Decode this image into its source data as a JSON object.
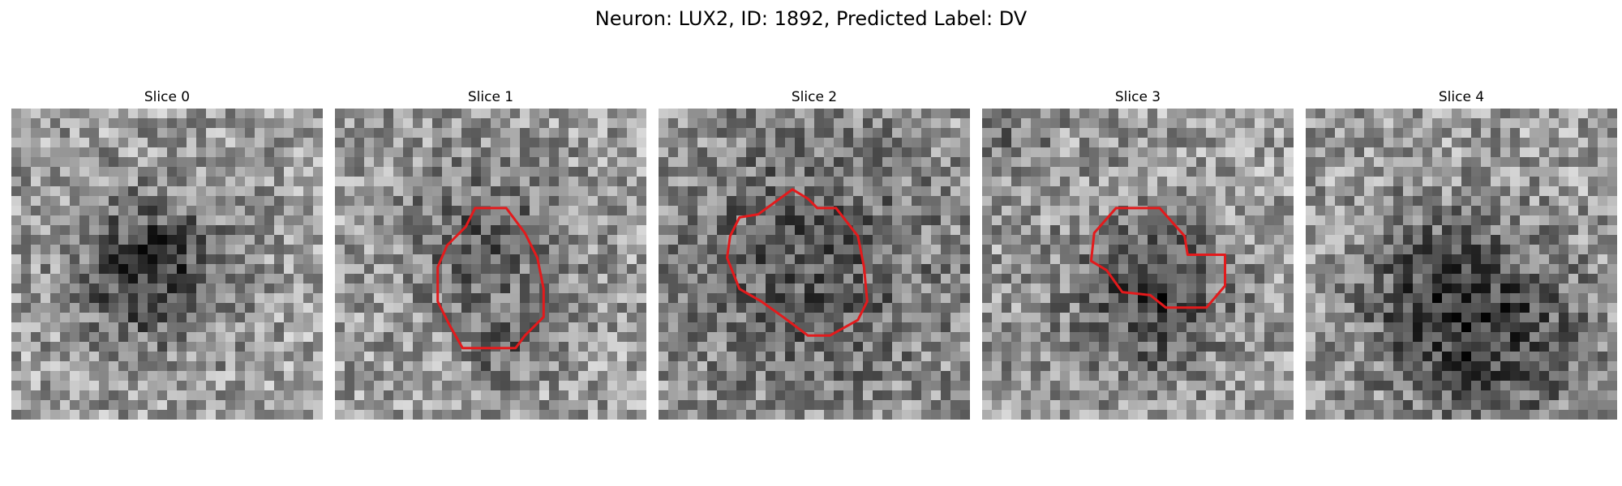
{
  "figure": {
    "title": "Neuron: LUX2, ID: 1892, Predicted Label: DV"
  },
  "panels": [
    {
      "title": "Slice 0",
      "grid": [
        32,
        32
      ],
      "dark_blobs": [
        [
          0.45,
          0.52,
          0.16,
          1.0
        ]
      ],
      "contour": []
    },
    {
      "title": "Slice 1",
      "grid": [
        32,
        32
      ],
      "dark_blobs": [
        [
          0.48,
          0.43,
          0.19,
          0.55
        ],
        [
          0.54,
          0.78,
          0.08,
          0.45
        ]
      ],
      "contour": [
        [
          0.45,
          0.32
        ],
        [
          0.55,
          0.32
        ],
        [
          0.61,
          0.4
        ],
        [
          0.65,
          0.48
        ],
        [
          0.67,
          0.58
        ],
        [
          0.67,
          0.67
        ],
        [
          0.61,
          0.73
        ],
        [
          0.58,
          0.77
        ],
        [
          0.41,
          0.77
        ],
        [
          0.37,
          0.7
        ],
        [
          0.33,
          0.62
        ],
        [
          0.33,
          0.51
        ],
        [
          0.36,
          0.44
        ],
        [
          0.42,
          0.38
        ]
      ]
    },
    {
      "title": "Slice 2",
      "grid": [
        32,
        32
      ],
      "dark_blobs": [
        [
          0.49,
          0.5,
          0.32,
          0.65
        ]
      ],
      "contour": [
        [
          0.32,
          0.34
        ],
        [
          0.43,
          0.26
        ],
        [
          0.48,
          0.29
        ],
        [
          0.51,
          0.32
        ],
        [
          0.57,
          0.32
        ],
        [
          0.64,
          0.41
        ],
        [
          0.66,
          0.51
        ],
        [
          0.67,
          0.62
        ],
        [
          0.64,
          0.68
        ],
        [
          0.55,
          0.73
        ],
        [
          0.48,
          0.73
        ],
        [
          0.4,
          0.67
        ],
        [
          0.33,
          0.62
        ],
        [
          0.26,
          0.58
        ],
        [
          0.22,
          0.48
        ],
        [
          0.23,
          0.41
        ],
        [
          0.26,
          0.35
        ]
      ]
    },
    {
      "title": "Slice 3",
      "grid": [
        32,
        32
      ],
      "dark_blobs": [
        [
          0.57,
          0.58,
          0.15,
          0.7
        ],
        [
          0.42,
          0.67,
          0.24,
          0.25
        ],
        [
          0.05,
          0.05,
          0.12,
          0.45
        ]
      ],
      "contour": [
        [
          0.36,
          0.4
        ],
        [
          0.43,
          0.32
        ],
        [
          0.57,
          0.32
        ],
        [
          0.65,
          0.41
        ],
        [
          0.66,
          0.47
        ],
        [
          0.78,
          0.47
        ],
        [
          0.78,
          0.57
        ],
        [
          0.72,
          0.64
        ],
        [
          0.59,
          0.64
        ],
        [
          0.54,
          0.6
        ],
        [
          0.45,
          0.59
        ],
        [
          0.4,
          0.52
        ],
        [
          0.35,
          0.49
        ]
      ]
    },
    {
      "title": "Slice 4",
      "grid": [
        32,
        32
      ],
      "dark_blobs": [
        [
          0.59,
          0.73,
          0.22,
          0.85
        ],
        [
          0.36,
          0.55,
          0.18,
          0.4
        ]
      ],
      "contour": []
    }
  ]
}
